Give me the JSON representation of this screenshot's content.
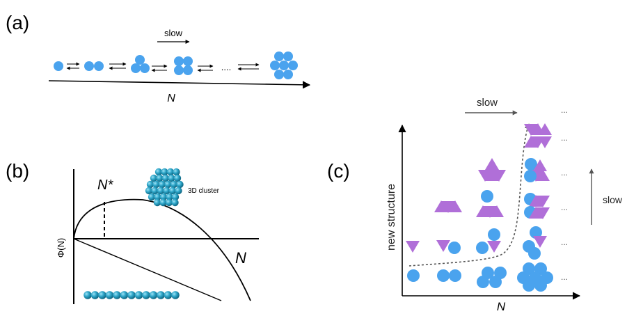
{
  "panel_a": {
    "label": "(a)",
    "slow_label": "slow",
    "ellipsis": "....",
    "axis_label": "N"
  },
  "panel_b": {
    "label": "(b)",
    "y_axis_label": "Φ(N)",
    "critical_label": "N*",
    "x_axis_label": "N",
    "cluster_label": "3D cluster"
  },
  "panel_c": {
    "label": "(c)",
    "slow_top_label": "slow",
    "slow_right_label": "slow",
    "y_axis_label": "new structure",
    "x_axis_label": "N",
    "ellipsis": "..."
  },
  "colors": {
    "particle_blue": "#4aa3ee",
    "particle_purple": "#b06fd8",
    "cluster_teal": "#1f8fb0",
    "axis": "#000000",
    "arrow_gray": "#555555"
  }
}
